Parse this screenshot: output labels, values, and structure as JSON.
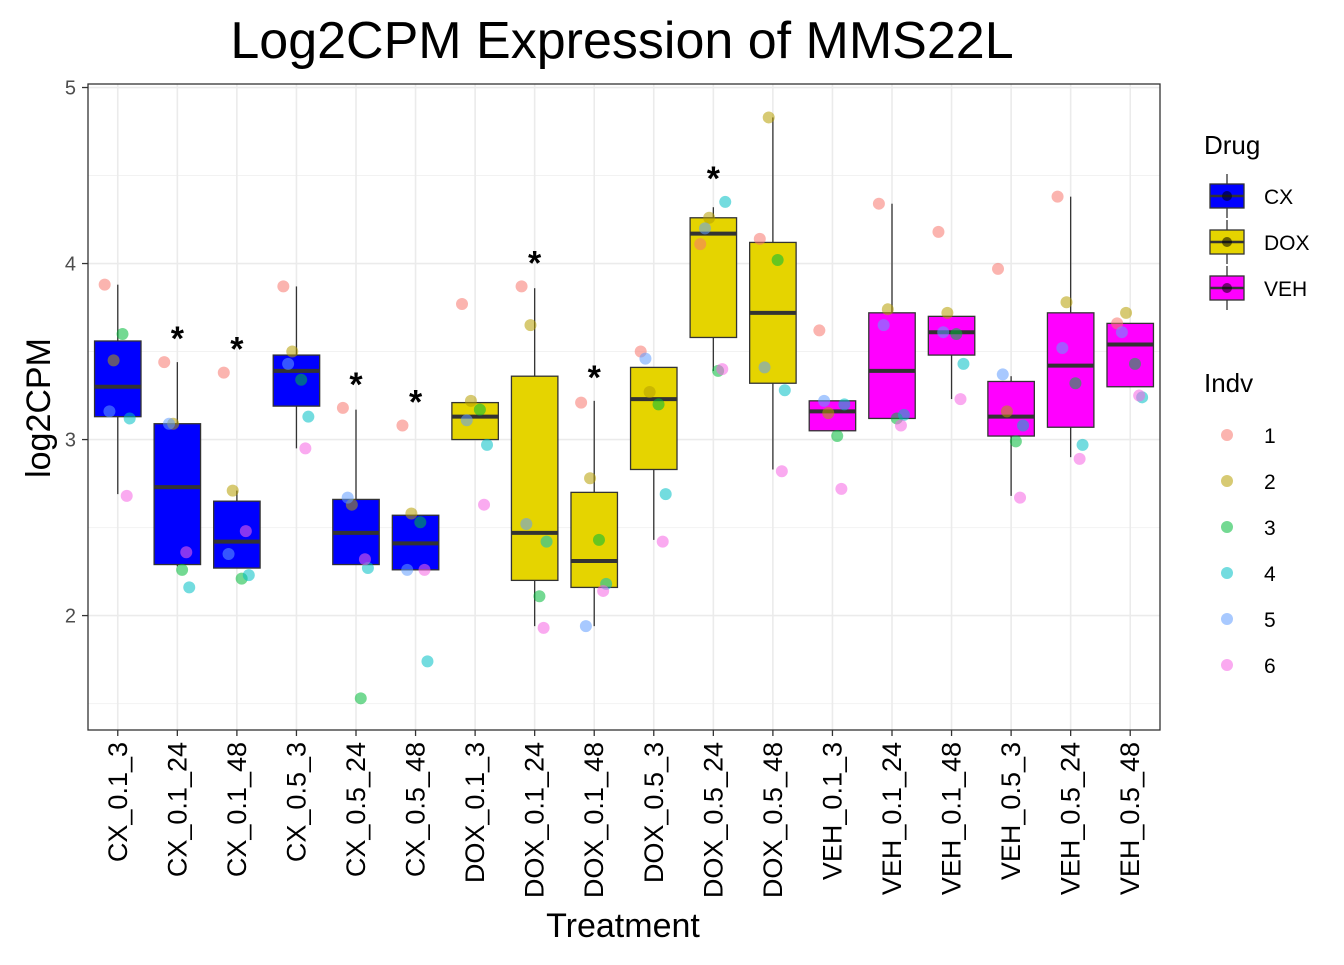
{
  "chart_data": {
    "type": "boxplot",
    "title": "Log2CPM Expression of MMS22L",
    "xlabel": "Treatment",
    "ylabel": "log2CPM",
    "ylim": [
      1.35,
      5.02
    ],
    "yticks": [
      2,
      3,
      4,
      5
    ],
    "grid": true,
    "legend_placement": "right",
    "categories": [
      "CX_0.1_3",
      "CX_0.1_24",
      "CX_0.1_48",
      "CX_0.5_3",
      "CX_0.5_24",
      "CX_0.5_48",
      "DOX_0.1_3",
      "DOX_0.1_24",
      "DOX_0.1_48",
      "DOX_0.5_3",
      "DOX_0.5_24",
      "DOX_0.5_48",
      "VEH_0.1_3",
      "VEH_0.1_24",
      "VEH_0.1_48",
      "VEH_0.5_3",
      "VEH_0.5_24",
      "VEH_0.5_48"
    ],
    "drug": [
      "CX",
      "CX",
      "CX",
      "CX",
      "CX",
      "CX",
      "DOX",
      "DOX",
      "DOX",
      "DOX",
      "DOX",
      "DOX",
      "VEH",
      "VEH",
      "VEH",
      "VEH",
      "VEH",
      "VEH"
    ],
    "significance_marker": "*",
    "significant": [
      false,
      true,
      true,
      false,
      true,
      true,
      false,
      true,
      true,
      false,
      true,
      false,
      false,
      false,
      false,
      false,
      false,
      false
    ],
    "boxes": [
      {
        "min": 2.69,
        "q1": 3.13,
        "median": 3.3,
        "q3": 3.56,
        "max": 3.88
      },
      {
        "min": 2.28,
        "q1": 2.29,
        "median": 2.73,
        "q3": 3.09,
        "max": 3.44
      },
      {
        "min": 2.27,
        "q1": 2.27,
        "median": 2.42,
        "q3": 2.65,
        "max": 2.71
      },
      {
        "min": 2.95,
        "q1": 3.19,
        "median": 3.39,
        "q3": 3.48,
        "max": 3.87
      },
      {
        "min": 2.29,
        "q1": 2.29,
        "median": 2.47,
        "q3": 2.66,
        "max": 3.17
      },
      {
        "min": 2.26,
        "q1": 2.26,
        "median": 2.41,
        "q3": 2.57,
        "max": 2.57
      },
      {
        "min": 3.0,
        "q1": 3.0,
        "median": 3.13,
        "q3": 3.21,
        "max": 3.21
      },
      {
        "min": 1.94,
        "q1": 2.2,
        "median": 2.47,
        "q3": 3.36,
        "max": 3.86
      },
      {
        "min": 1.94,
        "q1": 2.16,
        "median": 2.31,
        "q3": 2.7,
        "max": 3.22
      },
      {
        "min": 2.43,
        "q1": 2.83,
        "median": 3.23,
        "q3": 3.41,
        "max": 3.41
      },
      {
        "min": 3.39,
        "q1": 3.58,
        "median": 4.17,
        "q3": 4.26,
        "max": 4.32
      },
      {
        "min": 2.83,
        "q1": 3.32,
        "median": 3.72,
        "q3": 4.12,
        "max": 4.83
      },
      {
        "min": 3.05,
        "q1": 3.05,
        "median": 3.16,
        "q3": 3.22,
        "max": 3.22
      },
      {
        "min": 3.12,
        "q1": 3.12,
        "median": 3.39,
        "q3": 3.72,
        "max": 4.34
      },
      {
        "min": 3.23,
        "q1": 3.48,
        "median": 3.61,
        "q3": 3.7,
        "max": 3.7
      },
      {
        "min": 2.68,
        "q1": 3.02,
        "median": 3.13,
        "q3": 3.33,
        "max": 3.36
      },
      {
        "min": 2.9,
        "q1": 3.07,
        "median": 3.42,
        "q3": 3.72,
        "max": 4.38
      },
      {
        "min": 3.3,
        "q1": 3.3,
        "median": 3.54,
        "q3": 3.66,
        "max": 3.66
      }
    ],
    "points": [
      [
        3.88,
        3.45,
        3.6,
        3.12,
        3.16,
        2.68
      ],
      [
        3.44,
        3.09,
        2.26,
        2.16,
        3.09,
        2.36
      ],
      [
        3.38,
        2.71,
        2.21,
        2.23,
        2.35,
        2.48
      ],
      [
        3.87,
        3.5,
        3.34,
        3.13,
        3.43,
        2.95
      ],
      [
        3.18,
        2.63,
        1.53,
        2.27,
        2.67,
        2.32
      ],
      [
        3.08,
        2.58,
        2.53,
        1.74,
        2.26,
        2.26
      ],
      [
        3.77,
        3.22,
        3.17,
        2.97,
        3.11,
        2.63
      ],
      [
        3.87,
        3.65,
        2.11,
        2.42,
        2.52,
        1.93
      ],
      [
        3.21,
        2.78,
        2.43,
        2.18,
        1.94,
        2.14
      ],
      [
        3.5,
        3.27,
        3.2,
        2.69,
        3.46,
        2.42
      ],
      [
        4.11,
        4.26,
        3.39,
        4.35,
        4.2,
        3.4
      ],
      [
        4.14,
        4.83,
        4.02,
        3.28,
        3.41,
        2.82
      ],
      [
        3.62,
        3.15,
        3.02,
        3.2,
        3.22,
        2.72
      ],
      [
        4.34,
        3.74,
        3.12,
        3.14,
        3.65,
        3.08
      ],
      [
        4.18,
        3.72,
        3.6,
        3.43,
        3.61,
        3.23
      ],
      [
        3.97,
        3.16,
        2.99,
        3.08,
        3.37,
        2.67
      ],
      [
        4.38,
        3.78,
        3.32,
        2.97,
        3.52,
        2.89
      ],
      [
        3.66,
        3.72,
        3.43,
        3.24,
        3.61,
        3.25
      ]
    ],
    "legend": {
      "drug": {
        "title": "Drug",
        "items": [
          {
            "label": "CX",
            "color": "#0000FF"
          },
          {
            "label": "DOX",
            "color": "#E5D400"
          },
          {
            "label": "VEH",
            "color": "#FF00FF"
          }
        ]
      },
      "indv": {
        "title": "Indv",
        "items": [
          {
            "label": "1",
            "color": "#F8766D"
          },
          {
            "label": "2",
            "color": "#B79F00"
          },
          {
            "label": "3",
            "color": "#00BA38"
          },
          {
            "label": "4",
            "color": "#00BFC4"
          },
          {
            "label": "5",
            "color": "#619CFF"
          },
          {
            "label": "6",
            "color": "#F564E3"
          }
        ]
      }
    }
  }
}
